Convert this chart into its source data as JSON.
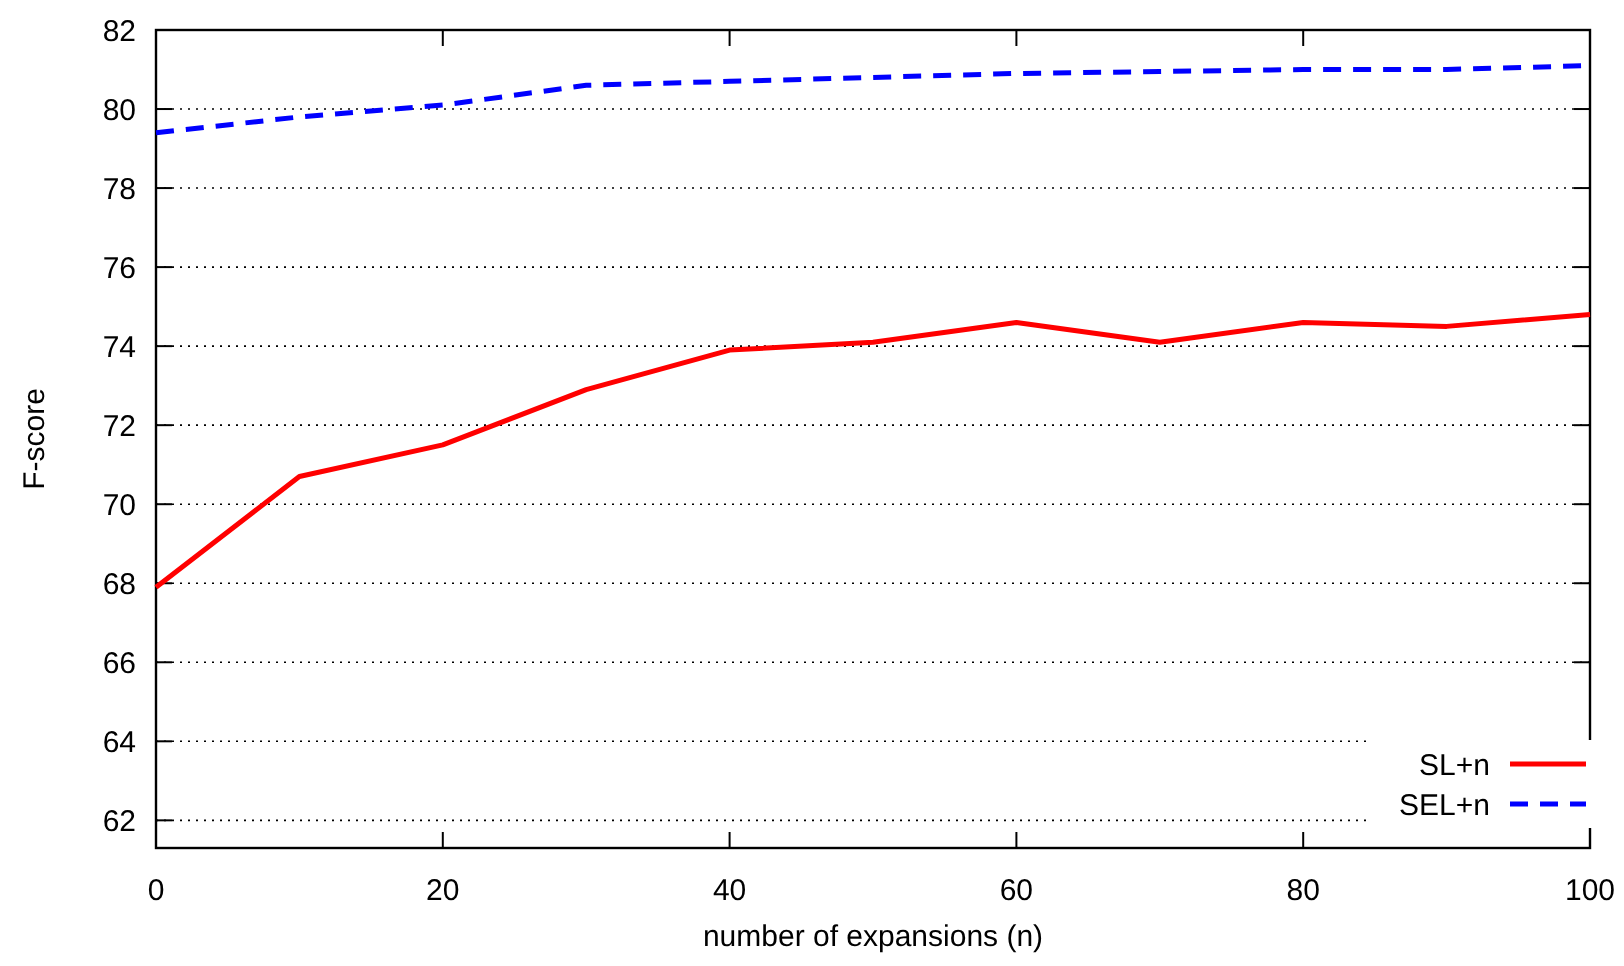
{
  "chart_data": {
    "type": "line",
    "xlabel": "number of expansions (n)",
    "ylabel": "F-score",
    "x": [
      0,
      10,
      20,
      30,
      40,
      50,
      60,
      70,
      80,
      90,
      100
    ],
    "series": [
      {
        "name": "SL+n",
        "color": "#ff0000",
        "line_style": "solid",
        "values": [
          67.9,
          70.7,
          71.5,
          72.9,
          73.9,
          74.1,
          74.6,
          74.1,
          74.6,
          74.5,
          74.8
        ]
      },
      {
        "name": "SEL+n",
        "color": "#0000ff",
        "line_style": "dashed",
        "values": [
          79.4,
          79.8,
          80.1,
          80.6,
          80.7,
          80.8,
          80.9,
          80.95,
          81.0,
          81.0,
          81.1
        ]
      }
    ],
    "xlim": [
      0,
      100
    ],
    "xticks": [
      0,
      20,
      40,
      60,
      80,
      100
    ],
    "ylim": [
      61.3,
      82
    ],
    "yticks": [
      62,
      64,
      66,
      68,
      70,
      72,
      74,
      76,
      78,
      80,
      82
    ],
    "grid": "y",
    "legend": "bottom right",
    "marker": "none"
  }
}
